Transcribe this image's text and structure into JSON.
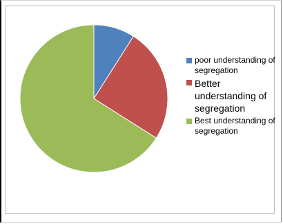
{
  "chart_data": {
    "type": "pie",
    "title": "",
    "slices": [
      {
        "label": "poor understanding of segregation",
        "value": 9,
        "color": "#4F81BD"
      },
      {
        "label": "Better understanding of segregation",
        "value": 25,
        "color": "#C0504D"
      },
      {
        "label": "Best understanding of segregation",
        "value": 66,
        "color": "#9BBB59"
      }
    ],
    "legend": "right"
  }
}
